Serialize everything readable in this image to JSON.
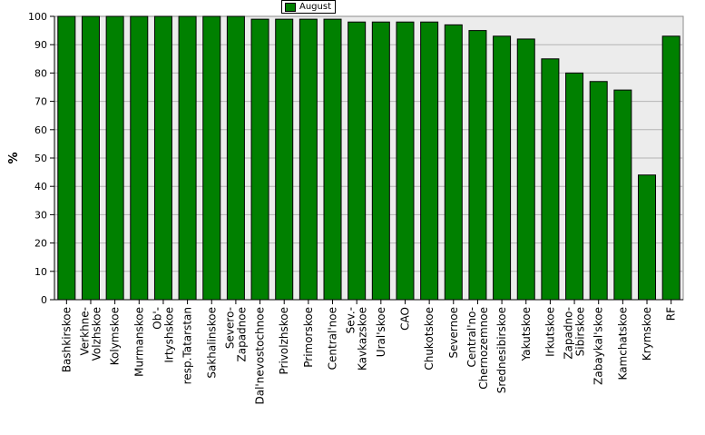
{
  "chart_data": {
    "type": "bar",
    "ylabel": "%",
    "ylim": [
      0,
      100
    ],
    "yticks": [
      0,
      10,
      20,
      30,
      40,
      50,
      60,
      70,
      80,
      90,
      100
    ],
    "grid": true,
    "legend_position": "top-center",
    "categories": [
      "Bashkirskoe",
      "Verkhne-Volzhskoe",
      "Kolymskoe",
      "Murmanskoe",
      "Ob'-Irtyshskoe",
      "resp.Tatarstan",
      "Sakhalinskoe",
      "Severo-Zapadnoe",
      "Dal'nevostochnoe",
      "Privolzhskoe",
      "Primorskoe",
      "Central'noe",
      "Sev.-Kavkazskoe",
      "Ural'skoe",
      "CAO",
      "Chukotskoe",
      "Severnoe",
      "Central'no-Chernozemnoe",
      "Srednesibirskoe",
      "Yakutskoe",
      "Irkutskoe",
      "Zapadno-Sibirskoe",
      "Zabaykal'skoe",
      "Kamchatskoe",
      "Krymskoe",
      "RF"
    ],
    "category_lines": [
      [
        "Bashkirskoe"
      ],
      [
        "Verkhne-",
        "Volzhskoe"
      ],
      [
        "Kolymskoe"
      ],
      [
        "Murmanskoe"
      ],
      [
        "Ob'-",
        "Irtyshskoe"
      ],
      [
        "resp.Tatarstan"
      ],
      [
        "Sakhalinskoe"
      ],
      [
        "Severo-",
        "Zapadnoe"
      ],
      [
        "Dal'nevostochnoe"
      ],
      [
        "Privolzhskoe"
      ],
      [
        "Primorskoe"
      ],
      [
        "Central'noe"
      ],
      [
        "Sev.-",
        "Kavkazskoe"
      ],
      [
        "Ural'skoe"
      ],
      [
        "CAO"
      ],
      [
        "Chukotskoe"
      ],
      [
        "Severnoe"
      ],
      [
        "Central'no-",
        "Chernozemnoe"
      ],
      [
        "Srednesibirskoe"
      ],
      [
        "Yakutskoe"
      ],
      [
        "Irkutskoe"
      ],
      [
        "Zapadno-",
        "Sibirskoe"
      ],
      [
        "Zabaykal'skoe"
      ],
      [
        "Kamchatskoe"
      ],
      [
        "Krymskoe"
      ],
      [
        "RF"
      ]
    ],
    "series": [
      {
        "name": "August",
        "color": "#008000",
        "values": [
          100,
          100,
          100,
          100,
          100,
          100,
          100,
          100,
          99,
          99,
          99,
          99,
          98,
          98,
          98,
          98,
          97,
          95,
          93,
          92,
          85,
          80,
          77,
          74,
          44,
          93
        ]
      }
    ]
  }
}
